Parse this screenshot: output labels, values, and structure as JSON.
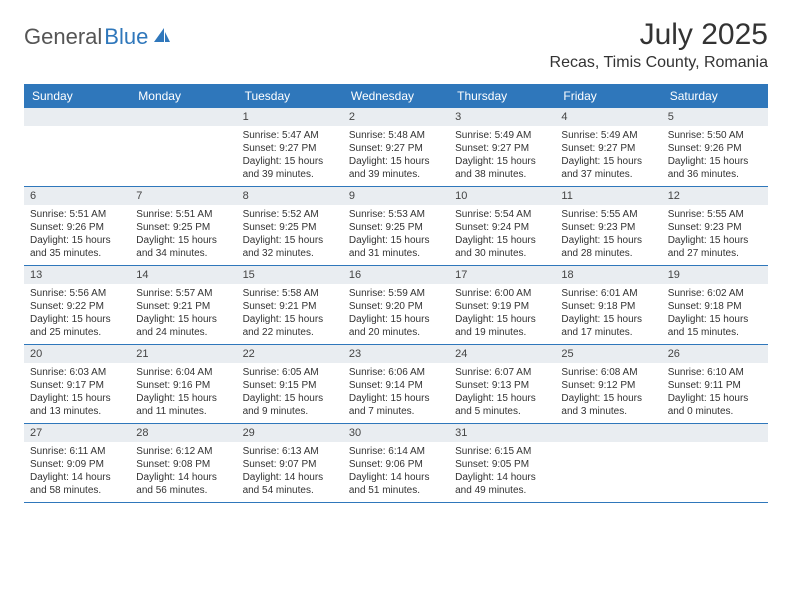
{
  "logo": {
    "text1": "General",
    "text2": "Blue"
  },
  "title": "July 2025",
  "location": "Recas, Timis County, Romania",
  "colors": {
    "accent": "#2f77bb",
    "dayNumBg": "#e9edf1",
    "text": "#333333",
    "logoGray": "#555555",
    "background": "#ffffff"
  },
  "dayNames": [
    "Sunday",
    "Monday",
    "Tuesday",
    "Wednesday",
    "Thursday",
    "Friday",
    "Saturday"
  ],
  "weeks": [
    [
      null,
      null,
      {
        "n": "1",
        "sr": "5:47 AM",
        "ss": "9:27 PM",
        "dl": "15 hours and 39 minutes."
      },
      {
        "n": "2",
        "sr": "5:48 AM",
        "ss": "9:27 PM",
        "dl": "15 hours and 39 minutes."
      },
      {
        "n": "3",
        "sr": "5:49 AM",
        "ss": "9:27 PM",
        "dl": "15 hours and 38 minutes."
      },
      {
        "n": "4",
        "sr": "5:49 AM",
        "ss": "9:27 PM",
        "dl": "15 hours and 37 minutes."
      },
      {
        "n": "5",
        "sr": "5:50 AM",
        "ss": "9:26 PM",
        "dl": "15 hours and 36 minutes."
      }
    ],
    [
      {
        "n": "6",
        "sr": "5:51 AM",
        "ss": "9:26 PM",
        "dl": "15 hours and 35 minutes."
      },
      {
        "n": "7",
        "sr": "5:51 AM",
        "ss": "9:25 PM",
        "dl": "15 hours and 34 minutes."
      },
      {
        "n": "8",
        "sr": "5:52 AM",
        "ss": "9:25 PM",
        "dl": "15 hours and 32 minutes."
      },
      {
        "n": "9",
        "sr": "5:53 AM",
        "ss": "9:25 PM",
        "dl": "15 hours and 31 minutes."
      },
      {
        "n": "10",
        "sr": "5:54 AM",
        "ss": "9:24 PM",
        "dl": "15 hours and 30 minutes."
      },
      {
        "n": "11",
        "sr": "5:55 AM",
        "ss": "9:23 PM",
        "dl": "15 hours and 28 minutes."
      },
      {
        "n": "12",
        "sr": "5:55 AM",
        "ss": "9:23 PM",
        "dl": "15 hours and 27 minutes."
      }
    ],
    [
      {
        "n": "13",
        "sr": "5:56 AM",
        "ss": "9:22 PM",
        "dl": "15 hours and 25 minutes."
      },
      {
        "n": "14",
        "sr": "5:57 AM",
        "ss": "9:21 PM",
        "dl": "15 hours and 24 minutes."
      },
      {
        "n": "15",
        "sr": "5:58 AM",
        "ss": "9:21 PM",
        "dl": "15 hours and 22 minutes."
      },
      {
        "n": "16",
        "sr": "5:59 AM",
        "ss": "9:20 PM",
        "dl": "15 hours and 20 minutes."
      },
      {
        "n": "17",
        "sr": "6:00 AM",
        "ss": "9:19 PM",
        "dl": "15 hours and 19 minutes."
      },
      {
        "n": "18",
        "sr": "6:01 AM",
        "ss": "9:18 PM",
        "dl": "15 hours and 17 minutes."
      },
      {
        "n": "19",
        "sr": "6:02 AM",
        "ss": "9:18 PM",
        "dl": "15 hours and 15 minutes."
      }
    ],
    [
      {
        "n": "20",
        "sr": "6:03 AM",
        "ss": "9:17 PM",
        "dl": "15 hours and 13 minutes."
      },
      {
        "n": "21",
        "sr": "6:04 AM",
        "ss": "9:16 PM",
        "dl": "15 hours and 11 minutes."
      },
      {
        "n": "22",
        "sr": "6:05 AM",
        "ss": "9:15 PM",
        "dl": "15 hours and 9 minutes."
      },
      {
        "n": "23",
        "sr": "6:06 AM",
        "ss": "9:14 PM",
        "dl": "15 hours and 7 minutes."
      },
      {
        "n": "24",
        "sr": "6:07 AM",
        "ss": "9:13 PM",
        "dl": "15 hours and 5 minutes."
      },
      {
        "n": "25",
        "sr": "6:08 AM",
        "ss": "9:12 PM",
        "dl": "15 hours and 3 minutes."
      },
      {
        "n": "26",
        "sr": "6:10 AM",
        "ss": "9:11 PM",
        "dl": "15 hours and 0 minutes."
      }
    ],
    [
      {
        "n": "27",
        "sr": "6:11 AM",
        "ss": "9:09 PM",
        "dl": "14 hours and 58 minutes."
      },
      {
        "n": "28",
        "sr": "6:12 AM",
        "ss": "9:08 PM",
        "dl": "14 hours and 56 minutes."
      },
      {
        "n": "29",
        "sr": "6:13 AM",
        "ss": "9:07 PM",
        "dl": "14 hours and 54 minutes."
      },
      {
        "n": "30",
        "sr": "6:14 AM",
        "ss": "9:06 PM",
        "dl": "14 hours and 51 minutes."
      },
      {
        "n": "31",
        "sr": "6:15 AM",
        "ss": "9:05 PM",
        "dl": "14 hours and 49 minutes."
      },
      null,
      null
    ]
  ],
  "labels": {
    "sunrise": "Sunrise: ",
    "sunset": "Sunset: ",
    "daylight": "Daylight: "
  }
}
